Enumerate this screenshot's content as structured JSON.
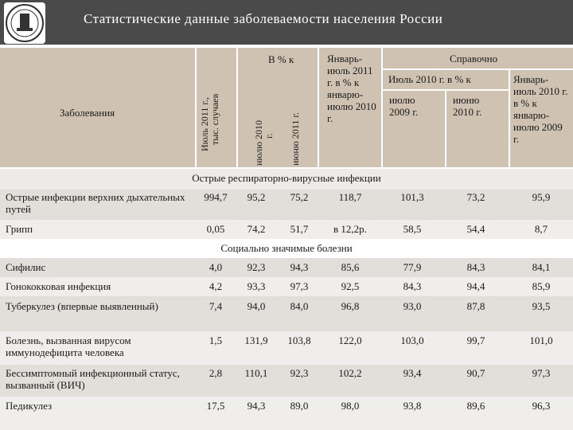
{
  "title": "Статистические данные заболеваемости населения России",
  "logo_icon": "emblem-icon",
  "header": {
    "disease": "Заболевания",
    "july_thousand": "Июль 2011 г., тыс. случаев",
    "percent_to": "В % к",
    "july_2010": "июлю 2010 г.",
    "june_2011": "июню 2011 г.",
    "jan_jul": "Январь-июль 2011 г. в % к январю-июлю 2010 г.",
    "reference": "Справочно",
    "jul2010_pct": "Июль 2010 г. в % к",
    "july_2009": "июлю 2009 г.",
    "june_2010": "июню 2010 г.",
    "jan_jul_2010": "Январь-июль 2010 г. в % к январю-июлю 2009 г."
  },
  "sections": [
    {
      "title": "Острые респираторно-вирусные инфекции"
    },
    {
      "title": "Социально значимые болезни"
    }
  ],
  "rows": [
    {
      "name": "Острые инфекции верхних дыхательных путей",
      "v": [
        "994,7",
        "95,2",
        "75,2",
        "118,7",
        "101,3",
        "73,2",
        "95,9"
      ]
    },
    {
      "name": "Грипп",
      "v": [
        "0,05",
        "74,2",
        "51,7",
        "в 12,2р.",
        "58,5",
        "54,4",
        "8,7"
      ]
    },
    {
      "name": "Сифилис",
      "v": [
        "4,0",
        "92,3",
        "94,3",
        "85,6",
        "77,9",
        "84,3",
        "84,1"
      ]
    },
    {
      "name": "Гонококковая инфекция",
      "v": [
        "4,2",
        "93,3",
        "97,3",
        "92,5",
        "84,3",
        "94,4",
        "85,9"
      ]
    },
    {
      "name": "Туберкулез (впервые выявленный)",
      "v": [
        "7,4",
        "94,0",
        "84,0",
        "96,8",
        "93,0",
        "87,8",
        "93,5"
      ]
    },
    {
      "name": "Болезнь, вызванная вирусом иммунодефицита человека",
      "v": [
        "1,5",
        "131,9",
        "103,8",
        "122,0",
        "103,0",
        "99,7",
        "101,0"
      ]
    },
    {
      "name": "Бессимптомный инфекционный статус, вызванный (ВИЧ)",
      "v": [
        "2,8",
        "110,1",
        "92,3",
        "102,2",
        "93,4",
        "90,7",
        "97,3"
      ]
    },
    {
      "name": "Педикулез",
      "v": [
        "17,5",
        "94,3",
        "89,0",
        "98,0",
        "93,8",
        "89,6",
        "96,3"
      ]
    }
  ]
}
